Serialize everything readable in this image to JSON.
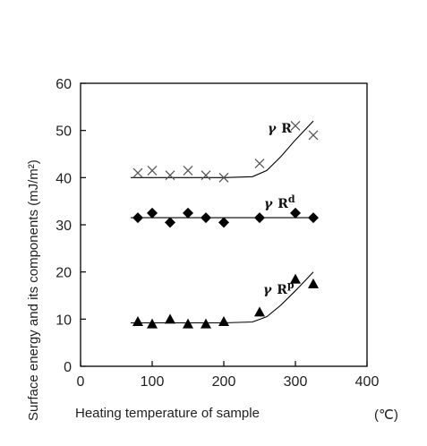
{
  "chart_data": {
    "type": "scatter",
    "title": "",
    "xlabel": "Heating temperature of sample",
    "xunit": "(℃)",
    "ylabel": "Surface energy and   its components  (mJ/m²)",
    "xlim": [
      0,
      400
    ],
    "ylim": [
      0,
      60
    ],
    "xticks": [
      0,
      100,
      200,
      300,
      400
    ],
    "yticks": [
      0,
      10,
      20,
      30,
      40,
      50,
      60
    ],
    "grid": false,
    "series": [
      {
        "name": "γR",
        "label_main": "γ",
        "label_sub": "R",
        "label_sup": "",
        "marker": "cross",
        "points": [
          [
            80,
            41
          ],
          [
            100,
            41.5
          ],
          [
            125,
            40.5
          ],
          [
            150,
            41.5
          ],
          [
            175,
            40.5
          ],
          [
            200,
            40
          ],
          [
            250,
            43
          ],
          [
            300,
            51
          ],
          [
            325,
            49
          ]
        ],
        "fit": [
          [
            70,
            40
          ],
          [
            150,
            40
          ],
          [
            200,
            40
          ],
          [
            240,
            40.2
          ],
          [
            260,
            41.5
          ],
          [
            280,
            44.5
          ],
          [
            300,
            48
          ],
          [
            325,
            52
          ]
        ]
      },
      {
        "name": "γRd",
        "label_main": "γ",
        "label_sub": "R",
        "label_sup": "d",
        "marker": "diamond",
        "points": [
          [
            80,
            31.5
          ],
          [
            100,
            32.5
          ],
          [
            125,
            30.5
          ],
          [
            150,
            32.5
          ],
          [
            175,
            31.5
          ],
          [
            200,
            30.5
          ],
          [
            250,
            31.5
          ],
          [
            300,
            32.5
          ],
          [
            325,
            31.5
          ]
        ],
        "fit": [
          [
            70,
            31.5
          ],
          [
            330,
            31.5
          ]
        ]
      },
      {
        "name": "γRp",
        "label_main": "γ",
        "label_sub": "R",
        "label_sup": "p",
        "marker": "triangle",
        "points": [
          [
            80,
            9.5
          ],
          [
            100,
            9
          ],
          [
            125,
            10
          ],
          [
            150,
            9
          ],
          [
            175,
            9
          ],
          [
            200,
            9.5
          ],
          [
            250,
            11.5
          ],
          [
            300,
            18.5
          ],
          [
            325,
            17.5
          ]
        ],
        "fit": [
          [
            70,
            9.2
          ],
          [
            150,
            9.2
          ],
          [
            200,
            9.2
          ],
          [
            240,
            9.4
          ],
          [
            260,
            10.5
          ],
          [
            280,
            13
          ],
          [
            300,
            16
          ],
          [
            325,
            20
          ]
        ]
      }
    ]
  }
}
